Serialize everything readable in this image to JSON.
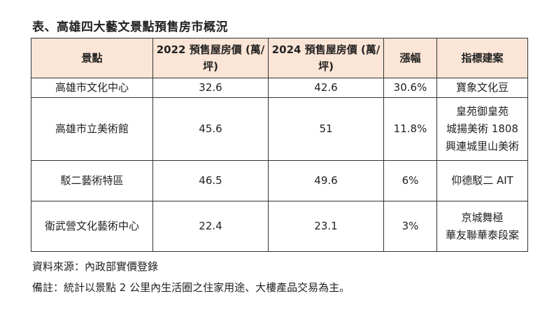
{
  "title": "表、高雄四大藝文景點預售房市概況",
  "table": {
    "headers": [
      {
        "lines": [
          "景點"
        ]
      },
      {
        "lines": [
          "2022 預售屋房價",
          "(萬/坪)"
        ]
      },
      {
        "lines": [
          "2024 預售屋房價",
          "(萬/坪)"
        ]
      },
      {
        "lines": [
          "漲幅"
        ]
      },
      {
        "lines": [
          "指標建案"
        ]
      }
    ],
    "rows": [
      {
        "spot": "高雄市文化中心",
        "price_2022": "32.6",
        "price_2024": "42.6",
        "increase": "30.6%",
        "projects": [
          "寶象文化豆"
        ]
      },
      {
        "spot": "高雄市立美術館",
        "price_2022": "45.6",
        "price_2024": "51",
        "increase": "11.8%",
        "projects": [
          "皇苑御皇苑",
          "城揚美術 1808",
          "興連城里山美術"
        ]
      },
      {
        "spot": "駁二藝術特區",
        "price_2022": "46.5",
        "price_2024": "49.6",
        "increase": "6%",
        "projects": [
          "仰德駁二 AIT"
        ]
      },
      {
        "spot": "衛武營文化藝術中心",
        "price_2022": "22.4",
        "price_2024": "23.1",
        "increase": "3%",
        "projects": [
          "京城舞極",
          "華友聯華泰段案"
        ]
      }
    ]
  },
  "source": "資料來源：內政部實價登錄",
  "remark": "備註：統計以景點 2 公里內生活圈之住家用途、大樓產品交易為主。"
}
